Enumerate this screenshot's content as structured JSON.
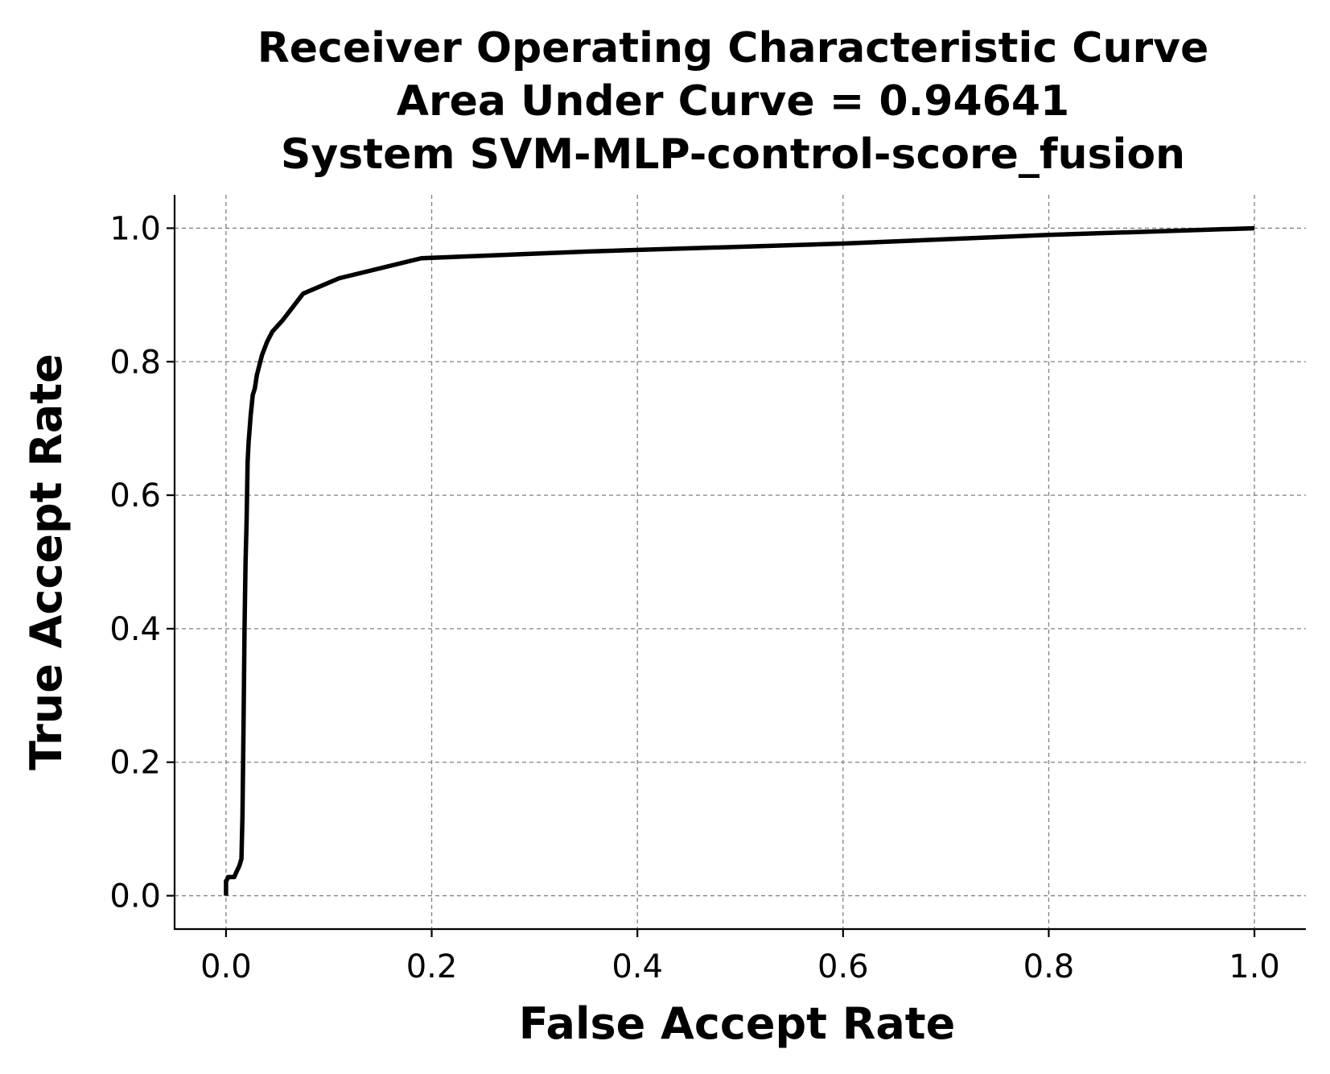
{
  "chart_data": {
    "type": "line",
    "title_lines": [
      "Receiver Operating Characteristic Curve",
      "Area Under Curve = 0.94641",
      "System SVM-MLP-control-score_fusion"
    ],
    "xlabel": "False Accept Rate",
    "ylabel": "True Accept Rate",
    "xlim": [
      -0.05,
      1.05
    ],
    "ylim": [
      -0.05,
      1.05
    ],
    "x_ticks": [
      0.0,
      0.2,
      0.4,
      0.6,
      0.8,
      1.0
    ],
    "y_ticks": [
      0.0,
      0.2,
      0.4,
      0.6,
      0.8,
      1.0
    ],
    "x_tick_labels": [
      "0.0",
      "0.2",
      "0.4",
      "0.6",
      "0.8",
      "1.0"
    ],
    "y_tick_labels": [
      "0.0",
      "0.2",
      "0.4",
      "0.6",
      "0.8",
      "1.0"
    ],
    "grid": true,
    "line_color": "#000000",
    "grid_color": "#808080",
    "series": [
      {
        "x": [
          0.0,
          0.0,
          0.001,
          0.002,
          0.008,
          0.01,
          0.013,
          0.015,
          0.016,
          0.017,
          0.018,
          0.019,
          0.02,
          0.021,
          0.022,
          0.024,
          0.026,
          0.028,
          0.03,
          0.035,
          0.04,
          0.045,
          0.055,
          0.065,
          0.075,
          0.11,
          0.19,
          0.35,
          0.6,
          0.8,
          1.0
        ],
        "y": [
          0.0,
          0.022,
          0.024,
          0.028,
          0.028,
          0.035,
          0.045,
          0.055,
          0.12,
          0.25,
          0.4,
          0.5,
          0.56,
          0.65,
          0.68,
          0.72,
          0.75,
          0.76,
          0.78,
          0.81,
          0.83,
          0.845,
          0.862,
          0.882,
          0.902,
          0.925,
          0.955,
          0.965,
          0.977,
          0.99,
          1.0
        ]
      }
    ]
  }
}
